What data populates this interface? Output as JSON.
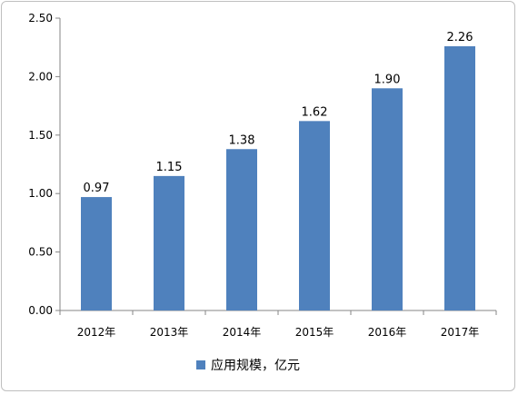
{
  "chart_data": {
    "type": "bar",
    "categories": [
      "2012年",
      "2013年",
      "2014年",
      "2015年",
      "2016年",
      "2017年"
    ],
    "series": [
      {
        "name": "应用规模，亿元",
        "values": [
          0.97,
          1.15,
          1.38,
          1.62,
          1.9,
          2.26
        ],
        "color": "#4f81bd"
      }
    ],
    "data_labels": [
      "0.97",
      "1.15",
      "1.38",
      "1.62",
      "1.90",
      "2.26"
    ],
    "y_ticks": [
      "0.00",
      "0.50",
      "1.00",
      "1.50",
      "2.00",
      "2.50"
    ],
    "ylim": [
      0,
      2.5
    ],
    "grid": false,
    "legend_position": "bottom"
  }
}
